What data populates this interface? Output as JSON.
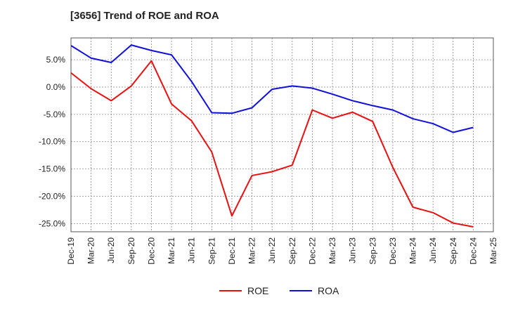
{
  "chart_data": {
    "type": "line",
    "title": "[3656]  Trend of ROE and ROA",
    "xlabel": "",
    "ylabel": "",
    "ylim": [
      -26.5,
      9
    ],
    "yticks": [
      5,
      0,
      -5,
      -10,
      -15,
      -20,
      -25
    ],
    "ytick_labels": [
      "5.0%",
      "0.0%",
      "-5.0%",
      "-10.0%",
      "-15.0%",
      "-20.0%",
      "-25.0%"
    ],
    "categories": [
      "Dec-19",
      "Mar-20",
      "Jun-20",
      "Sep-20",
      "Dec-20",
      "Mar-21",
      "Jun-21",
      "Sep-21",
      "Dec-21",
      "Mar-22",
      "Jun-22",
      "Sep-22",
      "Dec-22",
      "Mar-23",
      "Jun-23",
      "Sep-23",
      "Dec-23",
      "Mar-24",
      "Jun-24",
      "Sep-24",
      "Dec-24",
      "Mar-25"
    ],
    "grid": true,
    "legend_position": "bottom",
    "series": [
      {
        "name": "ROE",
        "color": "#e81010",
        "values": [
          2.6,
          -0.3,
          -2.5,
          0.2,
          4.8,
          -3.1,
          -6.2,
          -11.9,
          -23.6,
          -16.2,
          -15.5,
          -14.3,
          -4.2,
          -5.7,
          -4.6,
          -6.3,
          -14.7,
          -22.0,
          -23.0,
          -24.9,
          -25.6,
          null
        ]
      },
      {
        "name": "ROA",
        "color": "#1010d8",
        "values": [
          7.6,
          5.3,
          4.5,
          7.7,
          6.7,
          5.9,
          1.0,
          -4.7,
          -4.8,
          -3.8,
          -0.4,
          0.2,
          -0.2,
          -1.3,
          -2.5,
          -3.4,
          -4.2,
          -5.8,
          -6.7,
          -8.3,
          -7.4,
          null
        ]
      }
    ]
  }
}
